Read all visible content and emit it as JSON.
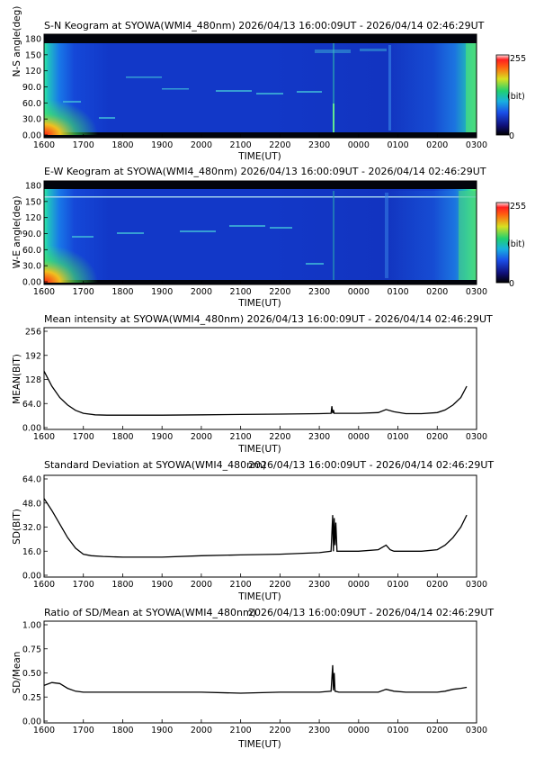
{
  "colors": {
    "line": "#000000",
    "frame": "#000000",
    "keogram_dark": "#0a1070",
    "keogram_mid": "#1a55e8",
    "keogram_edge": "#2fe0a0",
    "keogram_hot": "#ff3010"
  },
  "colorbar": {
    "max_label": "255",
    "unit_label": "(bit)",
    "min_label": "0"
  },
  "x_axis": {
    "label": "TIME(UT)",
    "tick_labels": [
      "1600",
      "1700",
      "1800",
      "1900",
      "2000",
      "2100",
      "2200",
      "2300",
      "0000",
      "0100",
      "0200",
      "0300"
    ],
    "range_hours_from_1600": [
      0,
      11
    ]
  },
  "panels": [
    {
      "title": "S-N Keogram at SYOWA(WMI4_480nm)    2026/04/13 16:00:09UT - 2026/04/14 02:46:29UT",
      "ylabel": "N-S angle(deg)",
      "yticks": [
        "180",
        "150",
        "120",
        "90.0",
        "60.0",
        "30.0",
        "0.00"
      ]
    },
    {
      "title": "E-W Keogram at SYOWA(WMI4_480nm)    2026/04/13 16:00:09UT - 2026/04/14 02:46:29UT",
      "ylabel": "W-E angle(deg)",
      "yticks": [
        "180",
        "150",
        "120",
        "90.0",
        "60.0",
        "30.0",
        "0.00"
      ]
    },
    {
      "title": "Mean intensity at SYOWA(WMI4_480nm)    2026/04/13 16:00:09UT - 2026/04/14 02:46:29UT",
      "ylabel": "MEAN(BIT)",
      "yticks": [
        "256",
        "192",
        "128",
        "64.0",
        "0.00"
      ]
    },
    {
      "title": "Standard Deviation at SYOWA(WMI4_480nm)",
      "title_time": "2026/04/13 16:00:09UT - 2026/04/14 02:46:29UT",
      "ylabel": "SD(BIT)",
      "yticks": [
        "64.0",
        "48.0",
        "32.0",
        "16.0",
        "0.00"
      ]
    },
    {
      "title": "Ratio of SD/Mean at SYOWA(WMI4_480nm)",
      "title_time": "2026/04/13 16:00:09UT - 2026/04/14 02:46:29UT",
      "ylabel": "SD/Mean",
      "yticks": [
        "1.00",
        "0.75",
        "0.50",
        "0.25",
        "0.00"
      ]
    }
  ],
  "chart_data": [
    {
      "type": "heatmap",
      "title": "S-N Keogram at SYOWA(WMI4_480nm)",
      "xlabel": "TIME(UT)",
      "ylabel": "N-S angle(deg)",
      "ylim": [
        0,
        180
      ],
      "colorbar_range": [
        0,
        255
      ],
      "colorbar_unit": "(bit)"
    },
    {
      "type": "heatmap",
      "title": "E-W Keogram at SYOWA(WMI4_480nm)",
      "xlabel": "TIME(UT)",
      "ylabel": "W-E angle(deg)",
      "ylim": [
        0,
        180
      ],
      "colorbar_range": [
        0,
        255
      ],
      "colorbar_unit": "(bit)"
    },
    {
      "type": "line",
      "title": "Mean intensity at SYOWA(WMI4_480nm)",
      "xlabel": "TIME(UT)",
      "ylabel": "MEAN(BIT)",
      "ylim": [
        0,
        256
      ],
      "x": [
        0.0,
        0.2,
        0.4,
        0.6,
        0.8,
        1.0,
        1.3,
        1.6,
        2.0,
        3.0,
        4.0,
        5.0,
        6.0,
        7.0,
        7.3,
        7.32,
        7.34,
        7.36,
        7.38,
        7.4,
        7.5,
        8.0,
        8.5,
        8.7,
        8.9,
        9.2,
        9.6,
        10.0,
        10.2,
        10.4,
        10.6,
        10.75
      ],
      "y": [
        150,
        110,
        80,
        60,
        46,
        38,
        34,
        33,
        33,
        33,
        34,
        35,
        36,
        37,
        38,
        57,
        38,
        47,
        38,
        38,
        38,
        38,
        40,
        48,
        42,
        37,
        37,
        40,
        47,
        60,
        80,
        110
      ]
    },
    {
      "type": "line",
      "title": "Standard Deviation at SYOWA(WMI4_480nm)",
      "xlabel": "TIME(UT)",
      "ylabel": "SD(BIT)",
      "ylim": [
        0,
        64
      ],
      "x": [
        0.0,
        0.2,
        0.4,
        0.6,
        0.8,
        1.0,
        1.2,
        1.5,
        2.0,
        3.0,
        4.0,
        5.0,
        6.0,
        7.0,
        7.3,
        7.34,
        7.36,
        7.38,
        7.4,
        7.42,
        7.45,
        7.5,
        8.0,
        8.5,
        8.7,
        8.8,
        8.9,
        9.2,
        9.6,
        10.0,
        10.2,
        10.4,
        10.6,
        10.75
      ],
      "y": [
        51,
        43,
        34,
        25,
        18,
        14,
        13,
        12.5,
        12,
        12,
        13,
        13.5,
        14,
        15,
        16,
        40,
        16,
        38,
        20,
        35,
        16,
        16,
        16,
        17,
        20,
        17,
        16,
        16,
        16,
        17,
        20,
        25,
        32,
        40
      ]
    },
    {
      "type": "line",
      "title": "Ratio of SD/Mean at SYOWA(WMI4_480nm)",
      "xlabel": "TIME(UT)",
      "ylabel": "SD/Mean",
      "ylim": [
        0,
        1
      ],
      "x": [
        0.0,
        0.2,
        0.4,
        0.6,
        0.8,
        1.0,
        1.3,
        2.0,
        3.0,
        4.0,
        5.0,
        6.0,
        7.0,
        7.3,
        7.34,
        7.36,
        7.38,
        7.4,
        7.5,
        8.0,
        8.5,
        8.7,
        8.9,
        9.2,
        9.6,
        10.0,
        10.2,
        10.4,
        10.6,
        10.75
      ],
      "y": [
        0.37,
        0.4,
        0.39,
        0.34,
        0.31,
        0.3,
        0.3,
        0.3,
        0.3,
        0.3,
        0.29,
        0.3,
        0.3,
        0.31,
        0.58,
        0.32,
        0.5,
        0.31,
        0.3,
        0.3,
        0.3,
        0.33,
        0.31,
        0.3,
        0.3,
        0.3,
        0.31,
        0.33,
        0.34,
        0.35
      ]
    }
  ]
}
